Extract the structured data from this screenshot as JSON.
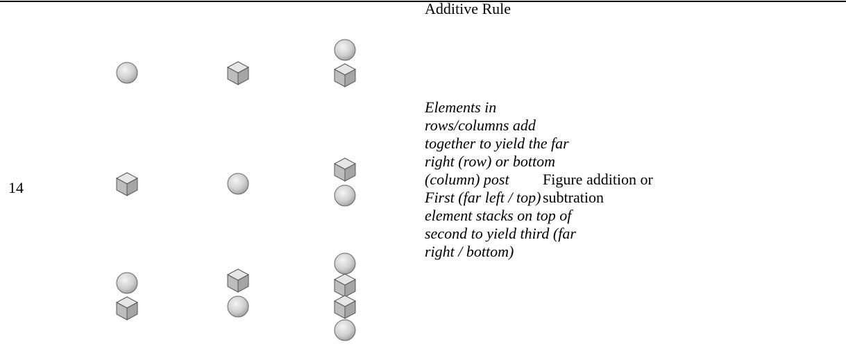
{
  "row": {
    "number": "14",
    "rule_title": "Additive Rule",
    "rule_description": [
      "Elements in rows/columns add together to yield the far right (row) or bottom (column) post",
      "First (far left / top) element stacks on top of second to yield third (far right / bottom)"
    ],
    "category": "Figure addition or subtration"
  }
}
